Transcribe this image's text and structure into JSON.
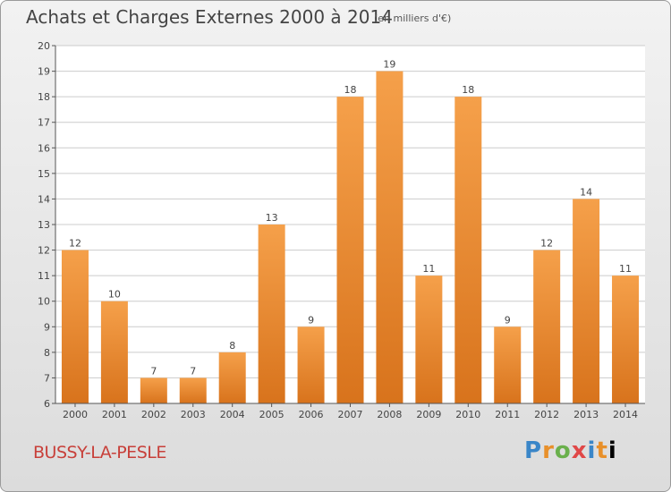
{
  "title": "Achats et Charges Externes 2000 à 2014",
  "subtitle": "(en milliers d'€)",
  "commune": "BUSSY-LA-PESLE",
  "logo": [
    "P",
    "r",
    "o",
    "x",
    "i",
    "t",
    "i"
  ],
  "colors": {
    "bar_light": "#f5a04a",
    "bar_dark": "#d8731c",
    "grid": "#cccccc",
    "axis": "#555555"
  },
  "chart_data": {
    "type": "bar",
    "categories": [
      "2000",
      "2001",
      "2002",
      "2003",
      "2004",
      "2005",
      "2006",
      "2007",
      "2008",
      "2009",
      "2010",
      "2011",
      "2012",
      "2013",
      "2014"
    ],
    "values": [
      12,
      10,
      7,
      7,
      8,
      13,
      9,
      18,
      19,
      11,
      18,
      9,
      12,
      14,
      11
    ],
    "ylim": [
      6,
      20
    ],
    "yticks": [
      6,
      7,
      8,
      9,
      10,
      11,
      12,
      13,
      14,
      15,
      16,
      17,
      18,
      19,
      20
    ],
    "grid": true,
    "data_labels": true
  }
}
